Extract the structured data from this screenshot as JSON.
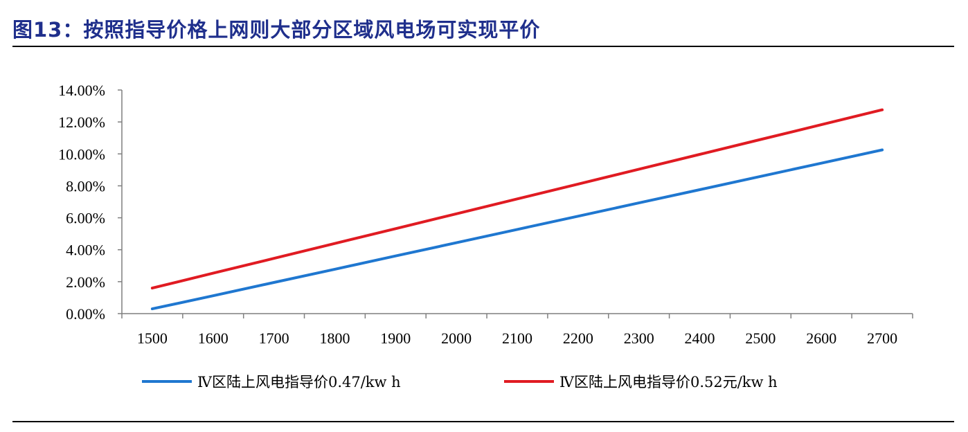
{
  "figure": {
    "title": "图13：按照指导价格上网则大部分区域风电场可实现平价"
  },
  "chart_data": {
    "type": "line",
    "title": "",
    "xlabel": "",
    "ylabel": "",
    "x": [
      1500,
      1600,
      1700,
      1800,
      1900,
      2000,
      2100,
      2200,
      2300,
      2400,
      2500,
      2600,
      2700
    ],
    "y_ticks": [
      "0.00%",
      "2.00%",
      "4.00%",
      "6.00%",
      "8.00%",
      "10.00%",
      "12.00%",
      "14.00%"
    ],
    "ylim": [
      0,
      0.14
    ],
    "grid": false,
    "legend_position": "bottom",
    "series": [
      {
        "name": "Ⅳ区陆上风电指导价0.47/kw h",
        "color": "#1f77d0",
        "values": [
          0.003,
          0.0112,
          0.0195,
          0.0278,
          0.0361,
          0.0444,
          0.0527,
          0.061,
          0.0693,
          0.0776,
          0.0859,
          0.0942,
          0.1025
        ]
      },
      {
        "name": "Ⅳ区陆上风电指导价0.52元/kw h",
        "color": "#e01b22",
        "values": [
          0.016,
          0.0253,
          0.0346,
          0.0439,
          0.0532,
          0.0625,
          0.0718,
          0.0811,
          0.0904,
          0.0997,
          0.109,
          0.1183,
          0.1276
        ]
      }
    ]
  }
}
